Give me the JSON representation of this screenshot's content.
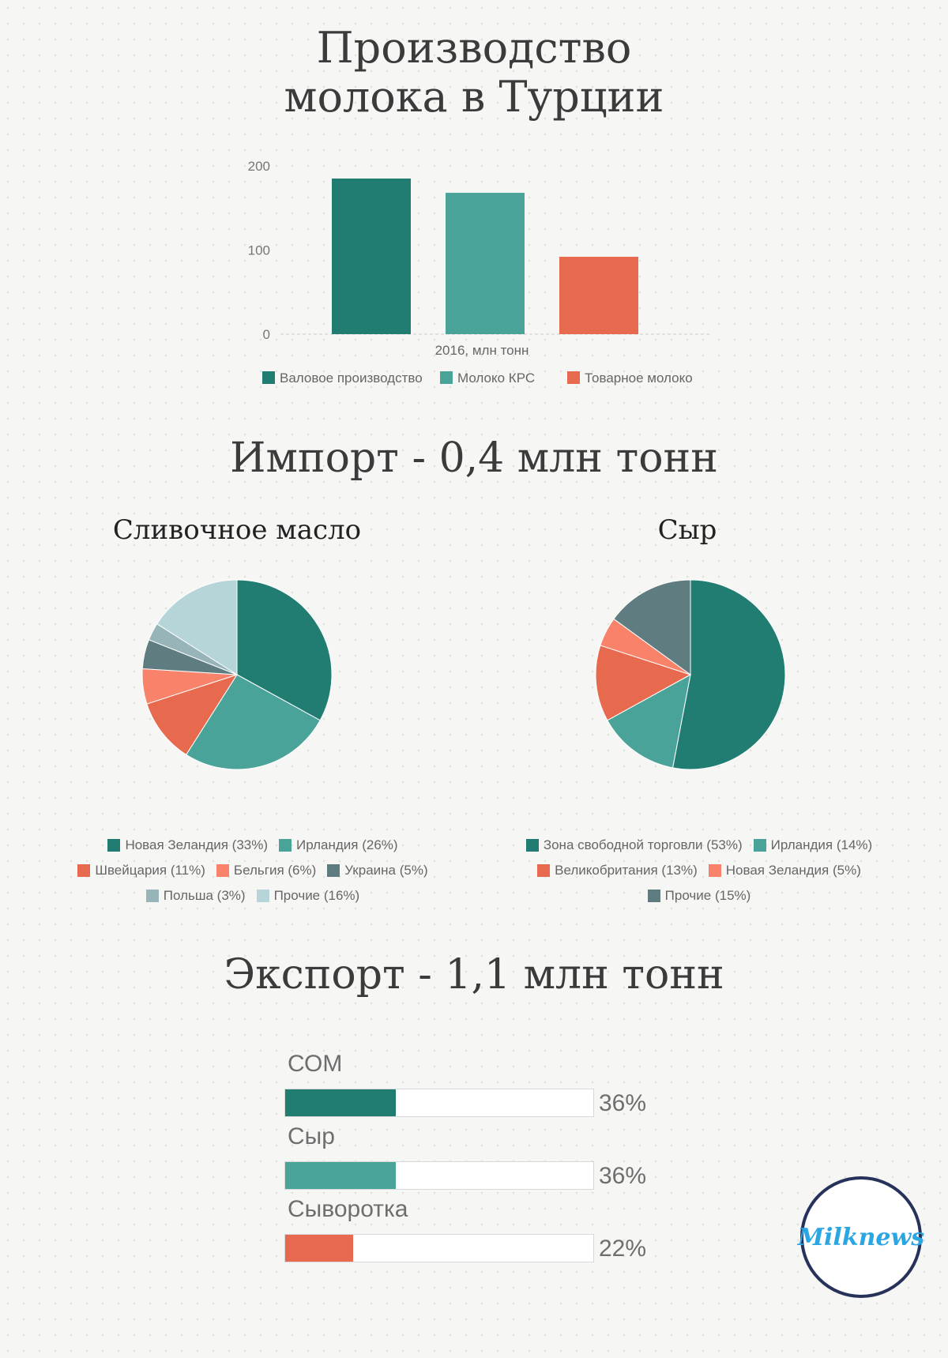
{
  "titles": {
    "main_line1": "Производство",
    "main_line2": "молока в Турции",
    "import": "Импорт - 0,4 млн тонн",
    "export": "Экспорт - 1,1 млн тонн",
    "butter": "Сливочное масло",
    "cheese": "Сыр"
  },
  "logo": "Milknews",
  "chart_data": [
    {
      "type": "bar",
      "categories": [
        "2016, млн тонн"
      ],
      "series": [
        {
          "name": "Валовое производство",
          "values": [
            185
          ],
          "color": "#217d71"
        },
        {
          "name": "Молоко КРС",
          "values": [
            168
          ],
          "color": "#4aa398"
        },
        {
          "name": "Товарное молоко",
          "values": [
            92
          ],
          "color": "#e76a4e"
        }
      ],
      "xlabel": "2016, млн тонн",
      "ylim": [
        0,
        200
      ],
      "yticks": [
        "0",
        "100",
        "200"
      ],
      "legend": "bottom"
    },
    {
      "type": "pie",
      "title": "Сливочное масло",
      "slices": [
        {
          "label": "Новая Зеландия (33%)",
          "value": 33,
          "color": "#217d71"
        },
        {
          "label": "Ирландия (26%)",
          "value": 26,
          "color": "#4aa398"
        },
        {
          "label": "Швейцария (11%)",
          "value": 11,
          "color": "#e76a4e"
        },
        {
          "label": "Бельгия (6%)",
          "value": 6,
          "color": "#f8836a"
        },
        {
          "label": "Украина (5%)",
          "value": 5,
          "color": "#5f7d80"
        },
        {
          "label": "Польша (3%)",
          "value": 3,
          "color": "#97b4b8"
        },
        {
          "label": "Прочие (16%)",
          "value": 16,
          "color": "#b6d5d9"
        }
      ],
      "legend": "bottom"
    },
    {
      "type": "pie",
      "title": "Сыр",
      "slices": [
        {
          "label": "Зона свободной торговли (53%)",
          "value": 53,
          "color": "#217d71"
        },
        {
          "label": "Ирландия (14%)",
          "value": 14,
          "color": "#4aa398"
        },
        {
          "label": "Великобритания (13%)",
          "value": 13,
          "color": "#e76a4e"
        },
        {
          "label": "Новая Зеландия (5%)",
          "value": 5,
          "color": "#f8836a"
        },
        {
          "label": "Прочие (15%)",
          "value": 15,
          "color": "#5f7d80"
        }
      ],
      "legend": "bottom"
    },
    {
      "type": "bar",
      "orientation": "horizontal",
      "title": "Экспорт - 1,1 млн тонн",
      "categories": [
        "СОМ",
        "Сыр",
        "Сыворотка"
      ],
      "values": [
        36,
        36,
        22
      ],
      "labels": [
        "36%",
        "36%",
        "22%"
      ],
      "colors": [
        "#217d71",
        "#4aa398",
        "#e76a4e"
      ],
      "xlim": [
        0,
        100
      ]
    }
  ]
}
